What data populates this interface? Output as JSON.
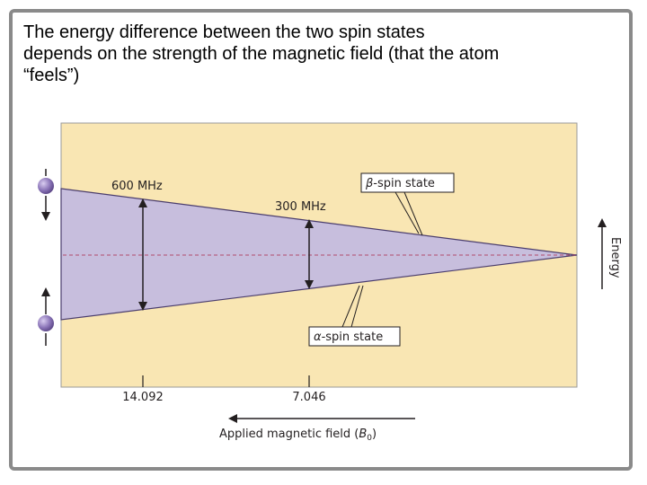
{
  "caption": {
    "line1": "The energy difference between the two spin states",
    "line2": "depends on the strength of the magnetic field (that the atom",
    "line3": "“feels”)"
  },
  "diagram": {
    "label_600": "600 MHz",
    "label_300": "300 MHz",
    "beta_label": "-spin state",
    "beta_symbol": "β",
    "alpha_label": "-spin state",
    "alpha_symbol": "α",
    "energy_label": "Energy",
    "tick_14": "14.092",
    "tick_7": "7.046",
    "field_label_prefix": "Applied magnetic field (",
    "field_label_symbol": "B",
    "field_label_sub": "0",
    "field_label_suffix": ")"
  },
  "colors": {
    "panel": "#f9e6b3",
    "wedge": "#c7bedd",
    "dashed": "#b04a6a",
    "ink": "#231f20",
    "spin_ball": "#8b75b8"
  }
}
